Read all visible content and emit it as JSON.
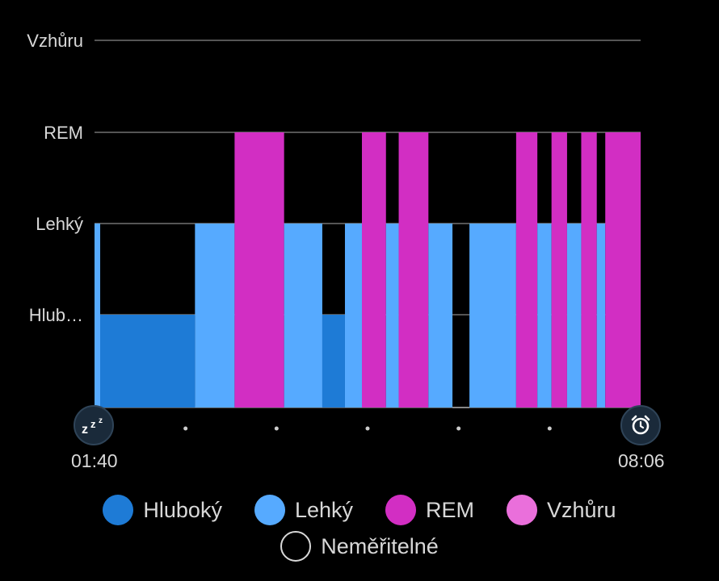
{
  "colors": {
    "deep": "#1e7bd6",
    "light": "#56aaff",
    "rem": "#d22ec3",
    "awake": "#ea6fdb",
    "background": "#000000",
    "grid": "#555555"
  },
  "icons": {
    "start": "sleep-zzz-icon",
    "end": "alarm-clock-icon"
  },
  "start_time": "01:40",
  "end_time": "08:06",
  "chart_data": {
    "type": "bar",
    "y_categories": [
      "Vzhůru",
      "REM",
      "Lehký",
      "Hlub…"
    ],
    "x_range": [
      "01:40",
      "08:06"
    ],
    "grid": true,
    "legend_position": "bottom",
    "legend": [
      {
        "name": "Hluboký",
        "color": "#1e7bd6"
      },
      {
        "name": "Lehký",
        "color": "#56aaff"
      },
      {
        "name": "REM",
        "color": "#d22ec3"
      },
      {
        "name": "Vzhůru",
        "color": "#ea6fdb"
      },
      {
        "name": "Neměřitelné",
        "color": "#000000"
      }
    ],
    "segments": [
      {
        "start": "01:40",
        "end": "01:44",
        "stage": "Lehký"
      },
      {
        "start": "01:44",
        "end": "02:51",
        "stage": "Hluboký"
      },
      {
        "start": "02:51",
        "end": "03:19",
        "stage": "Lehký"
      },
      {
        "start": "03:19",
        "end": "03:54",
        "stage": "REM"
      },
      {
        "start": "03:54",
        "end": "04:21",
        "stage": "Lehký"
      },
      {
        "start": "04:21",
        "end": "04:37",
        "stage": "Hluboký"
      },
      {
        "start": "04:37",
        "end": "04:49",
        "stage": "Lehký"
      },
      {
        "start": "04:49",
        "end": "05:06",
        "stage": "REM"
      },
      {
        "start": "05:06",
        "end": "05:15",
        "stage": "Lehký"
      },
      {
        "start": "05:15",
        "end": "05:36",
        "stage": "REM"
      },
      {
        "start": "05:36",
        "end": "05:53",
        "stage": "Lehký"
      },
      {
        "start": "05:53",
        "end": "06:05",
        "stage": "Neměřitelné"
      },
      {
        "start": "06:05",
        "end": "06:38",
        "stage": "Lehký"
      },
      {
        "start": "06:38",
        "end": "06:53",
        "stage": "REM"
      },
      {
        "start": "06:53",
        "end": "07:03",
        "stage": "Lehký"
      },
      {
        "start": "07:03",
        "end": "07:14",
        "stage": "REM"
      },
      {
        "start": "07:14",
        "end": "07:24",
        "stage": "Lehký"
      },
      {
        "start": "07:24",
        "end": "07:35",
        "stage": "REM"
      },
      {
        "start": "07:35",
        "end": "07:41",
        "stage": "Lehký"
      },
      {
        "start": "07:41",
        "end": "08:06",
        "stage": "REM"
      }
    ]
  }
}
